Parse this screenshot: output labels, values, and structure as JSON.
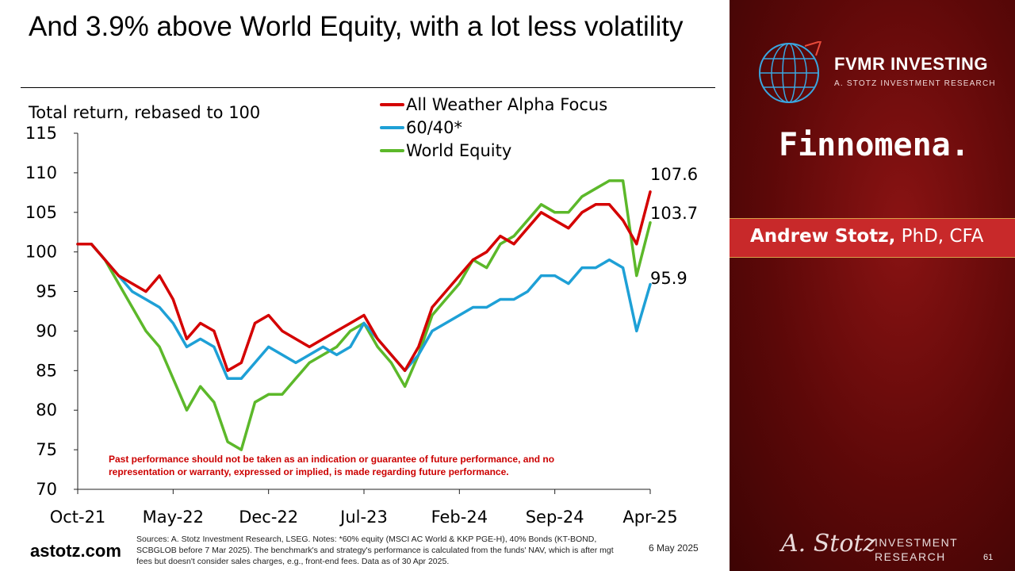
{
  "slide": {
    "title": "And 3.9% above World Equity, with a lot less volatility",
    "disclaimer": "Past performance should not be taken as an indication or guarantee of future performance, and no representation or warranty, expressed or implied, is made regarding future performance.",
    "sources": "Sources: A. Stotz Investment Research, LSEG. Notes: *60% equity (MSCI AC World & KKP PGE-H), 40% Bonds (KT-BOND, SCBGLOB before 7 Mar 2025). The benchmark's and strategy's performance is calculated from the funds' NAV, which is after mgt fees but doesn't consider sales charges, e.g., front-end fees. Data as of 30 Apr 2025.",
    "date": "6 May 2025",
    "website": "astotz.com",
    "page_number": "61"
  },
  "branding": {
    "fvmr_name": "FVMR INVESTING",
    "fvmr_sub": "A. STOTZ INVESTMENT RESEARCH",
    "finnomena": "Finnomena.",
    "presenter_name": "Andrew Stotz,",
    "presenter_suffix": " PhD, CFA",
    "footer_logo_line1": "INVESTMENT",
    "footer_logo_line2": "RESEARCH",
    "signature": "A. Stotz"
  },
  "colors": {
    "all_weather": "#d40000",
    "sixty_forty": "#1ea0d6",
    "world_equity": "#5cb82a",
    "sidebar": "#6b0a0a",
    "band": "#c8292a"
  },
  "chart_data": {
    "type": "line",
    "ylabel": "Total return, rebased to 100",
    "ylim": [
      70,
      115
    ],
    "yticks": [
      "70",
      "75",
      "80",
      "85",
      "90",
      "95",
      "100",
      "105",
      "110",
      "115"
    ],
    "xticks": [
      "Oct-21",
      "May-22",
      "Dec-22",
      "Jul-23",
      "Feb-24",
      "Sep-24",
      "Apr-25"
    ],
    "legend_position": "top",
    "x_dates": [
      "Oct-21",
      "Nov-21",
      "Dec-21",
      "Jan-22",
      "Feb-22",
      "Mar-22",
      "Apr-22",
      "May-22",
      "Jun-22",
      "Jul-22",
      "Aug-22",
      "Sep-22",
      "Oct-22",
      "Nov-22",
      "Dec-22",
      "Jan-23",
      "Feb-23",
      "Mar-23",
      "Apr-23",
      "May-23",
      "Jun-23",
      "Jul-23",
      "Aug-23",
      "Sep-23",
      "Oct-23",
      "Nov-23",
      "Dec-23",
      "Jan-24",
      "Feb-24",
      "Mar-24",
      "Apr-24",
      "May-24",
      "Jun-24",
      "Jul-24",
      "Aug-24",
      "Sep-24",
      "Oct-24",
      "Nov-24",
      "Dec-24",
      "Jan-25",
      "Feb-25",
      "Mar-25",
      "Apr-25"
    ],
    "series": [
      {
        "name": "All Weather Alpha Focus",
        "color": "#d40000",
        "end_label": "107.6",
        "values": [
          101,
          101,
          99,
          97,
          96,
          95,
          97,
          94,
          89,
          91,
          90,
          85,
          86,
          91,
          92,
          90,
          89,
          88,
          89,
          90,
          91,
          92,
          89,
          87,
          85,
          88,
          93,
          95,
          97,
          99,
          100,
          102,
          101,
          103,
          105,
          104,
          103,
          105,
          106,
          106,
          104,
          101,
          107.6
        ]
      },
      {
        "name": "60/40*",
        "color": "#1ea0d6",
        "end_label": "95.9",
        "values": [
          101,
          101,
          99,
          97,
          95,
          94,
          93,
          91,
          88,
          89,
          88,
          84,
          84,
          86,
          88,
          87,
          86,
          87,
          88,
          87,
          88,
          91,
          89,
          87,
          85,
          87,
          90,
          91,
          92,
          93,
          93,
          94,
          94,
          95,
          97,
          97,
          96,
          98,
          98,
          99,
          98,
          90,
          95.9
        ]
      },
      {
        "name": "World Equity",
        "color": "#5cb82a",
        "end_label": "103.7",
        "values": [
          101,
          101,
          99,
          96,
          93,
          90,
          88,
          84,
          80,
          83,
          81,
          76,
          75,
          81,
          82,
          82,
          84,
          86,
          87,
          88,
          90,
          91,
          88,
          86,
          83,
          87,
          92,
          94,
          96,
          99,
          98,
          101,
          102,
          104,
          106,
          105,
          105,
          107,
          108,
          109,
          109,
          97,
          103.7
        ]
      }
    ]
  }
}
